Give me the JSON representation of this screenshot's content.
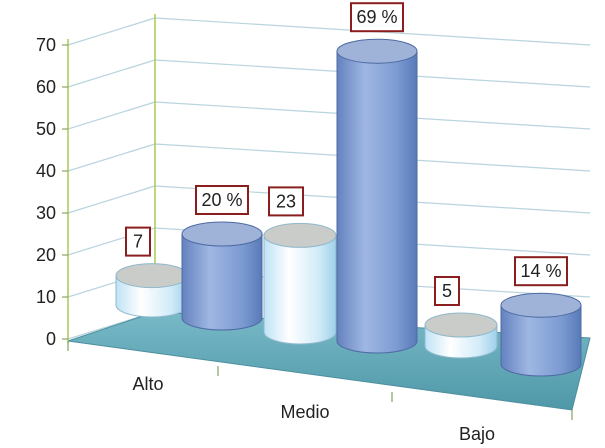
{
  "chart_data": {
    "type": "bar",
    "categories": [
      "Alto",
      "Medio",
      "Bajo"
    ],
    "series": [
      {
        "values": [
          7,
          23,
          5
        ],
        "color": "#d9eef9"
      },
      {
        "values": [
          20,
          69,
          14
        ],
        "color": "#7f9fd2"
      }
    ],
    "data_labels": [
      [
        "7",
        "23",
        "5"
      ],
      [
        "20 %",
        "69 %",
        "14 %"
      ]
    ],
    "yticks": [
      "0",
      "10",
      "20",
      "30",
      "40",
      "50",
      "60",
      "70"
    ],
    "ylim": [
      0,
      70
    ],
    "grid": true,
    "legend": "none",
    "floor_color": "#5fa5b3",
    "label_border_color": "#8a1e1e"
  }
}
